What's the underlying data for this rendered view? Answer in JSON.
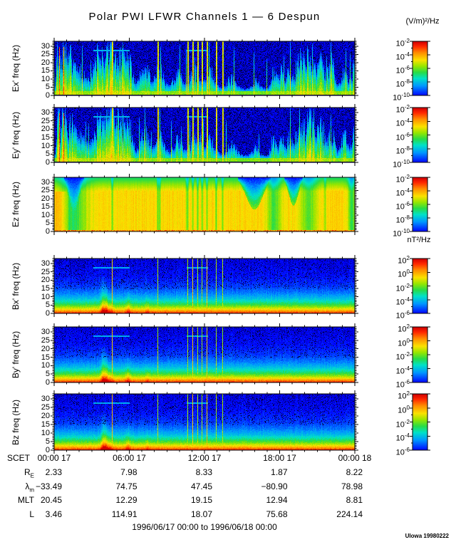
{
  "credit": "UIowa 19980222",
  "chart_data": {
    "type": "heatmap",
    "title": "Polar PWI LFWR Channels 1 — 6 Despun",
    "footer": "1996/06/17 00:00 to 1996/06/18 00:00",
    "x_axis": {
      "prefix": "SCET",
      "tick_labels": [
        "00:00 17",
        "06:00 17",
        "12:00 17",
        "18:00 17",
        "00:00 18"
      ],
      "range_hours": [
        0,
        24
      ],
      "minor_tick_hours": 1
    },
    "y_axis": {
      "tick_values": [
        0,
        5,
        10,
        15,
        20,
        25,
        30
      ],
      "range": [
        0,
        33
      ],
      "unit": "Hz",
      "minor_tick_step": 1
    },
    "panels": [
      {
        "ylabel": "Ex' freq (Hz)",
        "kind": "e_burst",
        "seed": 11,
        "colorbar": "electric"
      },
      {
        "ylabel": "Ey' freq (Hz)",
        "kind": "e_burst",
        "seed": 29,
        "colorbar": "electric"
      },
      {
        "ylabel": "Ez freq (Hz)",
        "kind": "e_saturated",
        "seed": 37,
        "colorbar": "electric"
      },
      {
        "ylabel": "Bx' freq (Hz)",
        "kind": "b_gradient",
        "seed": 53,
        "colorbar": "magnetic"
      },
      {
        "ylabel": "By' freq (Hz)",
        "kind": "b_gradient",
        "seed": 67,
        "colorbar": "magnetic"
      },
      {
        "ylabel": "Bz freq (Hz)",
        "kind": "b_gradient",
        "seed": 83,
        "colorbar": "magnetic"
      }
    ],
    "colorbars": {
      "electric": {
        "unit": "(V/m)²/Hz",
        "tick_exponents": [
          -2,
          -4,
          -6,
          -8,
          -10
        ]
      },
      "magnetic": {
        "unit": "nT²/Hz",
        "tick_exponents": [
          2,
          0,
          -2,
          -4,
          -6
        ]
      }
    },
    "colormap": {
      "low_hex": "#0000ff",
      "mid_hex": "#28dc46",
      "high_hex": "#d20000"
    },
    "spike_times_frac": [
      0.192,
      0.344,
      0.443,
      0.46,
      0.476,
      0.491,
      0.507,
      0.538,
      0.559
    ],
    "ephemeris": {
      "rows": [
        {
          "label": "R",
          "sub": "E",
          "values": [
            "2.33",
            "7.98",
            "8.33",
            "1.87",
            "8.22"
          ]
        },
        {
          "label": "λ",
          "sub": "m",
          "values": [
            "−33.49",
            "74.75",
            "47.45",
            "−80.90",
            "78.98"
          ]
        },
        {
          "label": "MLT",
          "sub": "",
          "values": [
            "20.45",
            "12.29",
            "19.15",
            "12.94",
            "8.81"
          ]
        },
        {
          "label": "L",
          "sub": "",
          "values": [
            "3.46",
            "114.91",
            "18.07",
            "75.68",
            "224.14"
          ]
        }
      ]
    }
  }
}
